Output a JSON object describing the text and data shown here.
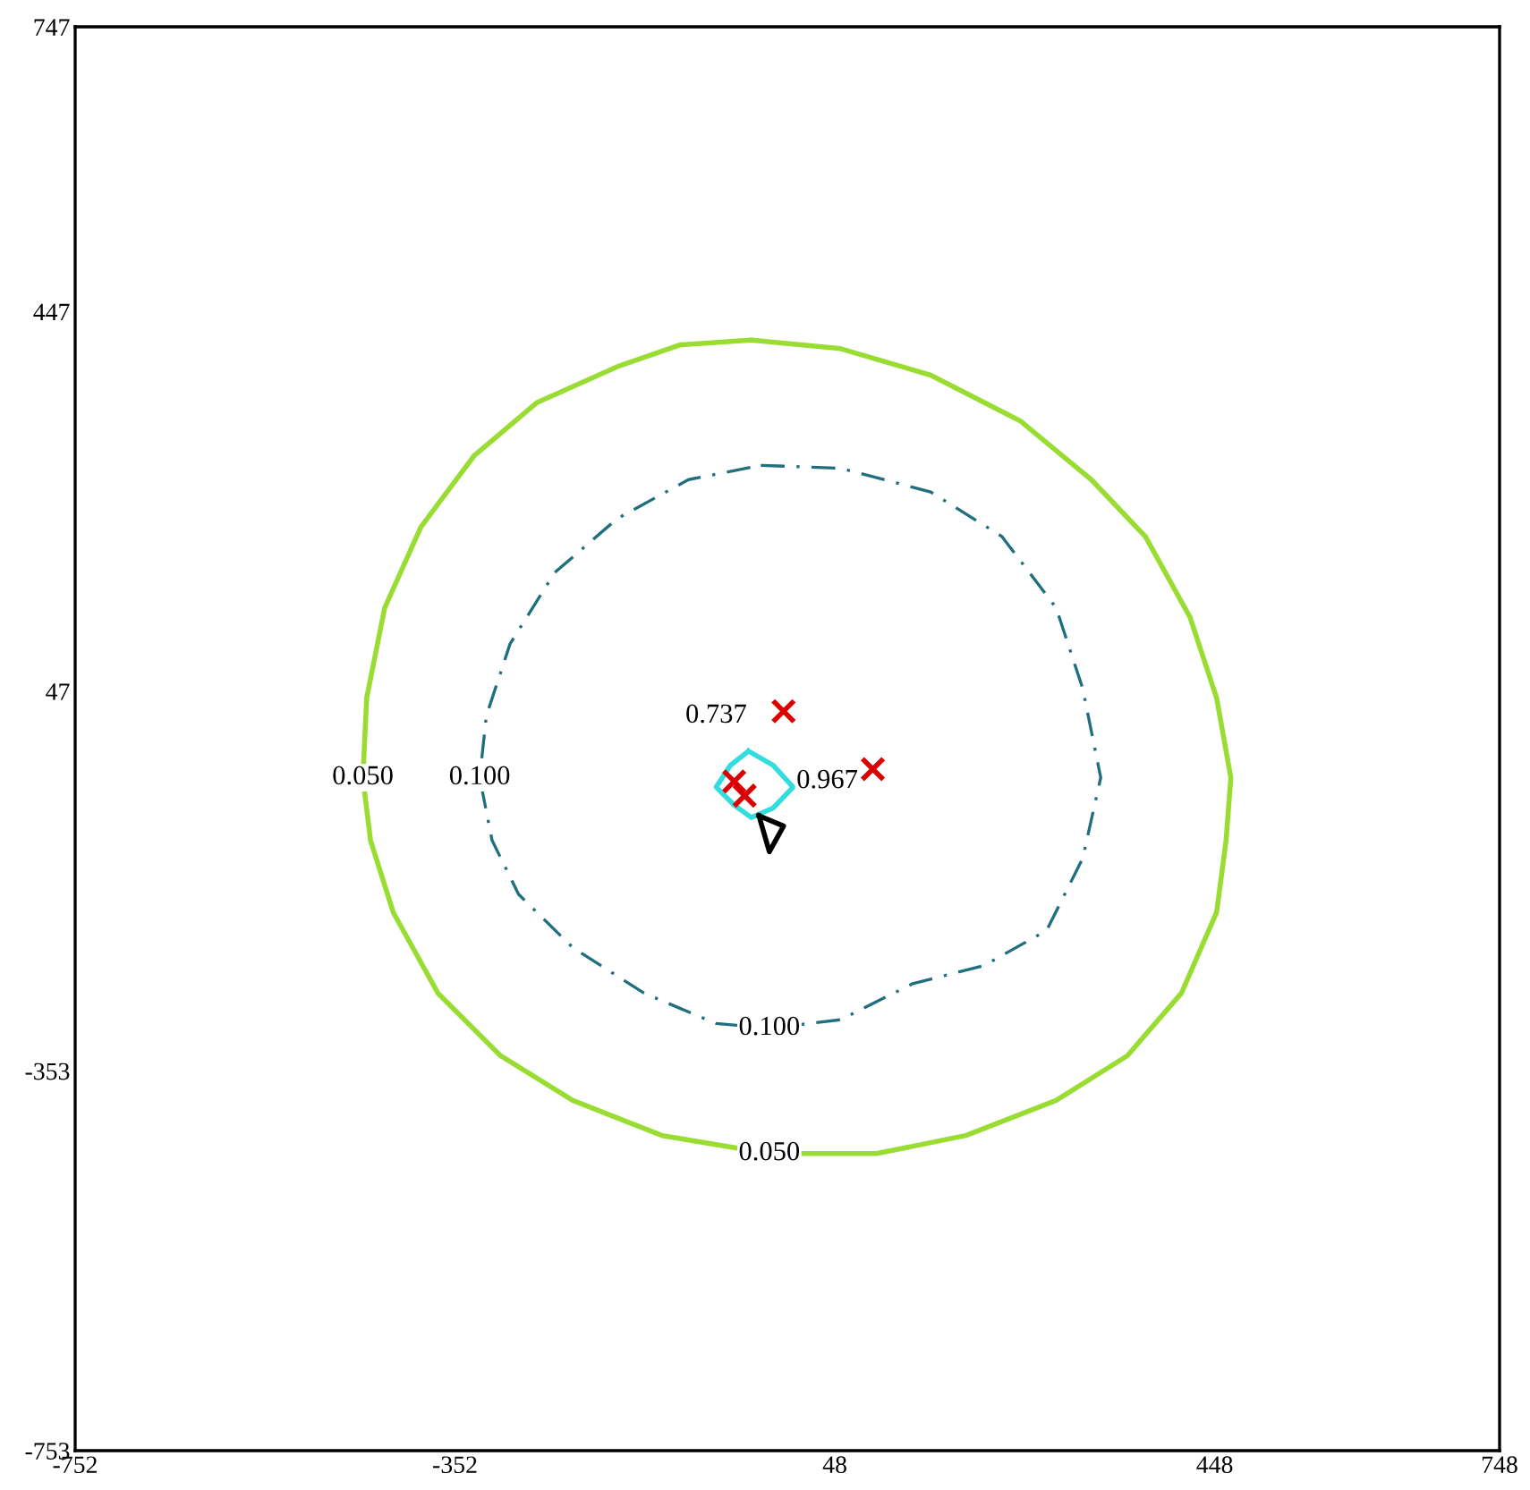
{
  "chart_data": {
    "type": "scatter",
    "xlim": [
      -752,
      748
    ],
    "ylim": [
      -753,
      747
    ],
    "xticks": [
      -752,
      -352,
      48,
      448,
      748
    ],
    "yticks": [
      -753,
      -353,
      47,
      447,
      747
    ],
    "grid": false,
    "legend": false,
    "series": [
      {
        "marker": "cross",
        "color": "#dd0000",
        "x": [
          -6,
          88,
          -58,
          -47
        ],
        "values": [
          26,
          -35,
          -48,
          -63
        ]
      }
    ],
    "annotations": [
      {
        "text": "0.050",
        "x": -449,
        "y": -44
      },
      {
        "text": "0.100",
        "x": -326,
        "y": -44
      },
      {
        "text": "0.100",
        "x": -21,
        "y": -308
      },
      {
        "text": "0.050",
        "x": -21,
        "y": -440
      },
      {
        "text": "0.737",
        "x": -77,
        "y": 21
      },
      {
        "text": "0.967",
        "x": 40,
        "y": -48
      }
    ]
  }
}
